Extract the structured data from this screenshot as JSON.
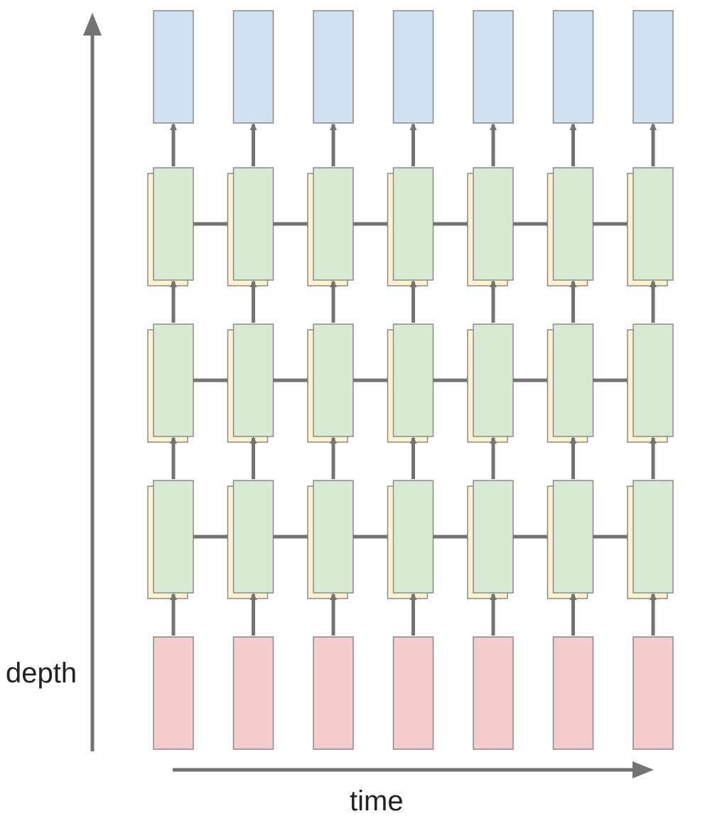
{
  "labels": {
    "depth": "depth",
    "time": "time"
  },
  "structure": {
    "timesteps": 7,
    "hidden_layers": 3
  },
  "colors": {
    "input": "#f4cccc",
    "hidden": "#d9ead3",
    "hidden_back": "#fff2cc",
    "output": "#cfe2f3",
    "border": "#8a8a8a",
    "arrow": "#737373",
    "text": "#222222"
  }
}
